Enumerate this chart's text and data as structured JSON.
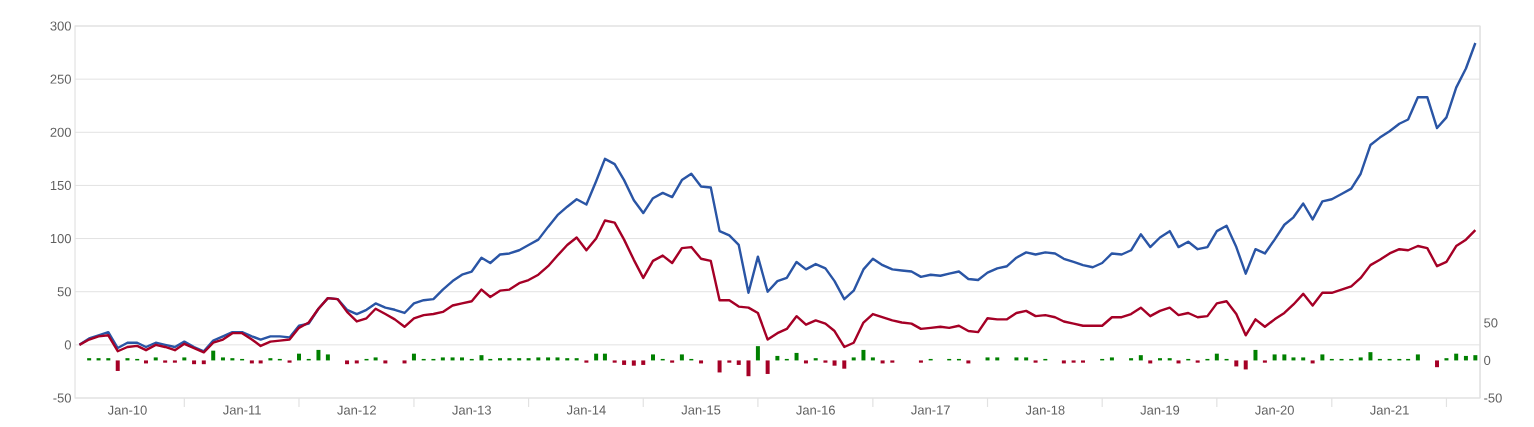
{
  "chart_data": {
    "type": "line",
    "x": [
      "2009-08",
      "2009-09",
      "2009-10",
      "2009-11",
      "2009-12",
      "2010-01",
      "2010-02",
      "2010-03",
      "2010-04",
      "2010-05",
      "2010-06",
      "2010-07",
      "2010-08",
      "2010-09",
      "2010-10",
      "2010-11",
      "2010-12",
      "2011-01",
      "2011-02",
      "2011-03",
      "2011-04",
      "2011-05",
      "2011-06",
      "2011-07",
      "2011-08",
      "2011-09",
      "2011-10",
      "2011-11",
      "2011-12",
      "2012-01",
      "2012-02",
      "2012-03",
      "2012-04",
      "2012-05",
      "2012-06",
      "2012-07",
      "2012-08",
      "2012-09",
      "2012-10",
      "2012-11",
      "2012-12",
      "2013-01",
      "2013-02",
      "2013-03",
      "2013-04",
      "2013-05",
      "2013-06",
      "2013-07",
      "2013-08",
      "2013-09",
      "2013-10",
      "2013-11",
      "2013-12",
      "2014-01",
      "2014-02",
      "2014-03",
      "2014-04",
      "2014-05",
      "2014-06",
      "2014-07",
      "2014-08",
      "2014-09",
      "2014-10",
      "2014-11",
      "2014-12",
      "2015-01",
      "2015-02",
      "2015-03",
      "2015-04",
      "2015-05",
      "2015-06",
      "2015-07",
      "2015-08",
      "2015-09",
      "2015-10",
      "2015-11",
      "2015-12",
      "2016-01",
      "2016-02",
      "2016-03",
      "2016-04",
      "2016-05",
      "2016-06",
      "2016-07",
      "2016-08",
      "2016-09",
      "2016-10",
      "2016-11",
      "2016-12",
      "2017-01",
      "2017-02",
      "2017-03",
      "2017-04",
      "2017-05",
      "2017-06",
      "2017-07",
      "2017-08",
      "2017-09",
      "2017-10",
      "2017-11",
      "2017-12",
      "2018-01",
      "2018-02",
      "2018-03",
      "2018-04",
      "2018-05",
      "2018-06",
      "2018-07",
      "2018-08",
      "2018-09",
      "2018-10",
      "2018-11",
      "2018-12",
      "2019-01",
      "2019-02",
      "2019-03",
      "2019-04",
      "2019-05",
      "2019-06",
      "2019-07",
      "2019-08",
      "2019-09",
      "2019-10",
      "2019-11",
      "2019-12",
      "2020-01",
      "2020-02",
      "2020-03",
      "2020-04",
      "2020-05",
      "2020-06",
      "2020-07",
      "2020-08",
      "2020-09",
      "2020-10",
      "2020-11",
      "2020-12",
      "2021-01",
      "2021-02",
      "2021-03",
      "2021-04",
      "2021-05",
      "2021-06",
      "2021-07",
      "2021-08",
      "2021-09",
      "2021-10"
    ],
    "series": [
      {
        "color": "#2a55a5",
        "values": [
          0,
          6,
          9,
          12,
          -3,
          2,
          2,
          -2,
          2,
          0,
          -2,
          3,
          -2,
          -6,
          4,
          8,
          12,
          12,
          8,
          5,
          8,
          8,
          7,
          18,
          20,
          34,
          44,
          43,
          33,
          29,
          33,
          39,
          35,
          33,
          30,
          39,
          42,
          43,
          52,
          60,
          66,
          69,
          82,
          77,
          85,
          86,
          89,
          94,
          99,
          111,
          122,
          130,
          137,
          132,
          154,
          175,
          170,
          155,
          136,
          124,
          138,
          143,
          139,
          155,
          161,
          149,
          148,
          107,
          103,
          94,
          49,
          83,
          50,
          60,
          63,
          78,
          71,
          76,
          72,
          60,
          43,
          51,
          71,
          81,
          75,
          71,
          70,
          69,
          64,
          66,
          65,
          67,
          69,
          62,
          61,
          68,
          72,
          74,
          82,
          87,
          85,
          87,
          86,
          81,
          78,
          75,
          73,
          77,
          86,
          85,
          89,
          104,
          92,
          101,
          107,
          92,
          97,
          90,
          92,
          107,
          112,
          92,
          67,
          90,
          86,
          99,
          113,
          120,
          133,
          118,
          135,
          137,
          142,
          147,
          161,
          188,
          195,
          201,
          208,
          212,
          233,
          233,
          204,
          214,
          242,
          260,
          284
        ]
      },
      {
        "color": "#a50026",
        "values": [
          0,
          5,
          8,
          9,
          -6,
          -2,
          -1,
          -5,
          0,
          -2,
          -5,
          1,
          -3,
          -7,
          2,
          5,
          11,
          11,
          5,
          -1,
          3,
          4,
          5,
          16,
          21,
          34,
          44,
          43,
          31,
          22,
          25,
          34,
          29,
          24,
          17,
          25,
          28,
          29,
          31,
          37,
          39,
          41,
          52,
          45,
          51,
          52,
          58,
          61,
          66,
          74,
          84,
          94,
          101,
          89,
          100,
          117,
          115,
          99,
          80,
          63,
          79,
          84,
          77,
          91,
          92,
          81,
          79,
          42,
          42,
          36,
          35,
          30,
          5,
          11,
          15,
          27,
          19,
          23,
          20,
          13,
          -2,
          2,
          21,
          29,
          26,
          23,
          21,
          20,
          15,
          16,
          17,
          16,
          18,
          13,
          12,
          25,
          24,
          24,
          30,
          32,
          27,
          28,
          26,
          22,
          20,
          18,
          18,
          18,
          26,
          26,
          29,
          35,
          27,
          32,
          35,
          28,
          30,
          26,
          27,
          39,
          41,
          29,
          9,
          24,
          17,
          24,
          30,
          38,
          48,
          37,
          49,
          49,
          52,
          55,
          63,
          75,
          80,
          86,
          90,
          89,
          93,
          91,
          74,
          78,
          93,
          99,
          108
        ]
      },
      {
        "type": "bar",
        "axis": "y2",
        "values": [
          null,
          3,
          3,
          3,
          -14,
          3,
          2,
          -4,
          4,
          -3,
          -3,
          4,
          -5,
          -5,
          13,
          4,
          3,
          2,
          -4,
          -4,
          3,
          2,
          -3,
          9,
          2,
          14,
          8,
          null,
          -5,
          -4,
          2,
          4,
          -4,
          null,
          -4,
          9,
          2,
          2,
          4,
          4,
          4,
          2,
          7,
          2,
          3,
          3,
          3,
          3,
          4,
          4,
          4,
          3,
          3,
          -3,
          9,
          9,
          -3,
          -6,
          -7,
          -6,
          8,
          2,
          -3,
          8,
          2,
          -4,
          null,
          -16,
          -3,
          -6,
          -21,
          19,
          -18,
          6,
          2,
          10,
          -4,
          3,
          -3,
          -7,
          -11,
          4,
          14,
          4,
          -4,
          -3,
          null,
          null,
          -3,
          2,
          null,
          2,
          2,
          -4,
          null,
          4,
          4,
          null,
          4,
          4,
          -3,
          2,
          null,
          -4,
          -3,
          -3,
          null,
          2,
          4,
          null,
          3,
          7,
          -4,
          3,
          3,
          -4,
          2,
          -3,
          2,
          9,
          2,
          -8,
          -12,
          14,
          -3,
          8,
          8,
          4,
          4,
          -4,
          8,
          2,
          2,
          2,
          4,
          11,
          2,
          2,
          2,
          2,
          8,
          null,
          -9,
          3,
          9,
          6,
          7
        ],
        "colors": [
          "#008000",
          "#008000",
          "#008000",
          "#008000",
          "#a50026",
          "#008000",
          "#008000",
          "#a50026",
          "#008000",
          "#a50026",
          "#a50026",
          "#008000",
          "#a50026",
          "#a50026",
          "#008000",
          "#008000",
          "#008000",
          "#008000",
          "#a50026",
          "#a50026",
          "#008000",
          "#008000",
          "#a50026",
          "#008000",
          "#008000",
          "#008000",
          "#008000",
          "#008000",
          "#a50026",
          "#a50026",
          "#008000",
          "#008000",
          "#a50026",
          "#008000",
          "#a50026",
          "#008000",
          "#008000",
          "#008000",
          "#008000",
          "#008000",
          "#008000",
          "#008000",
          "#008000",
          "#008000",
          "#008000",
          "#008000",
          "#008000",
          "#008000",
          "#008000",
          "#008000",
          "#008000",
          "#008000",
          "#008000",
          "#a50026",
          "#008000",
          "#008000",
          "#a50026",
          "#a50026",
          "#a50026",
          "#a50026",
          "#008000",
          "#008000",
          "#a50026",
          "#008000",
          "#008000",
          "#a50026",
          "#008000",
          "#a50026",
          "#a50026",
          "#a50026",
          "#a50026",
          "#008000",
          "#a50026",
          "#008000",
          "#008000",
          "#008000",
          "#a50026",
          "#008000",
          "#a50026",
          "#a50026",
          "#a50026",
          "#008000",
          "#008000",
          "#008000",
          "#a50026",
          "#a50026",
          "#008000",
          "#008000",
          "#a50026",
          "#008000",
          "#008000",
          "#008000",
          "#008000",
          "#a50026",
          "#008000",
          "#008000",
          "#008000",
          "#008000",
          "#008000",
          "#008000",
          "#a50026",
          "#008000",
          "#008000",
          "#a50026",
          "#a50026",
          "#a50026",
          "#008000",
          "#008000",
          "#008000",
          "#008000",
          "#008000",
          "#008000",
          "#a50026",
          "#008000",
          "#008000",
          "#a50026",
          "#008000",
          "#a50026",
          "#008000",
          "#008000",
          "#008000",
          "#a50026",
          "#a50026",
          "#008000",
          "#a50026",
          "#008000",
          "#008000",
          "#008000",
          "#008000",
          "#a50026",
          "#008000",
          "#008000",
          "#008000",
          "#008000",
          "#008000",
          "#008000",
          "#008000",
          "#008000",
          "#008000",
          "#008000",
          "#008000",
          "#008000",
          "#a50026",
          "#008000",
          "#008000",
          "#008000",
          "#008000"
        ]
      }
    ],
    "xlim": [
      "2009-07-18",
      "2021-10-16"
    ],
    "xticks": [
      {
        "value": "2010-01",
        "label": "Jan-10"
      },
      {
        "value": "2010-07",
        "label": null
      },
      {
        "value": "2011-01",
        "label": "Jan-11"
      },
      {
        "value": "2011-07",
        "label": null
      },
      {
        "value": "2012-01",
        "label": "Jan-12"
      },
      {
        "value": "2012-07",
        "label": null
      },
      {
        "value": "2013-01",
        "label": "Jan-13"
      },
      {
        "value": "2013-07",
        "label": null
      },
      {
        "value": "2014-01",
        "label": "Jan-14"
      },
      {
        "value": "2014-07",
        "label": null
      },
      {
        "value": "2015-01",
        "label": "Jan-15"
      },
      {
        "value": "2015-07",
        "label": null
      },
      {
        "value": "2016-01",
        "label": "Jan-16"
      },
      {
        "value": "2016-07",
        "label": null
      },
      {
        "value": "2017-01",
        "label": "Jan-17"
      },
      {
        "value": "2017-07",
        "label": null
      },
      {
        "value": "2018-01",
        "label": "Jan-18"
      },
      {
        "value": "2018-07",
        "label": null
      },
      {
        "value": "2019-01",
        "label": "Jan-19"
      },
      {
        "value": "2019-07",
        "label": null
      },
      {
        "value": "2020-01",
        "label": "Jan-20"
      },
      {
        "value": "2020-07",
        "label": null
      },
      {
        "value": "2021-01",
        "label": "Jan-21"
      },
      {
        "value": "2021-07",
        "label": null
      }
    ],
    "ylim": [
      -50,
      300
    ],
    "yticks": [
      -50,
      0,
      50,
      100,
      150,
      200,
      250,
      300
    ],
    "y2lim": [
      -50,
      445
    ],
    "y2ticks": [
      -50,
      0,
      50
    ],
    "grid": "y"
  }
}
